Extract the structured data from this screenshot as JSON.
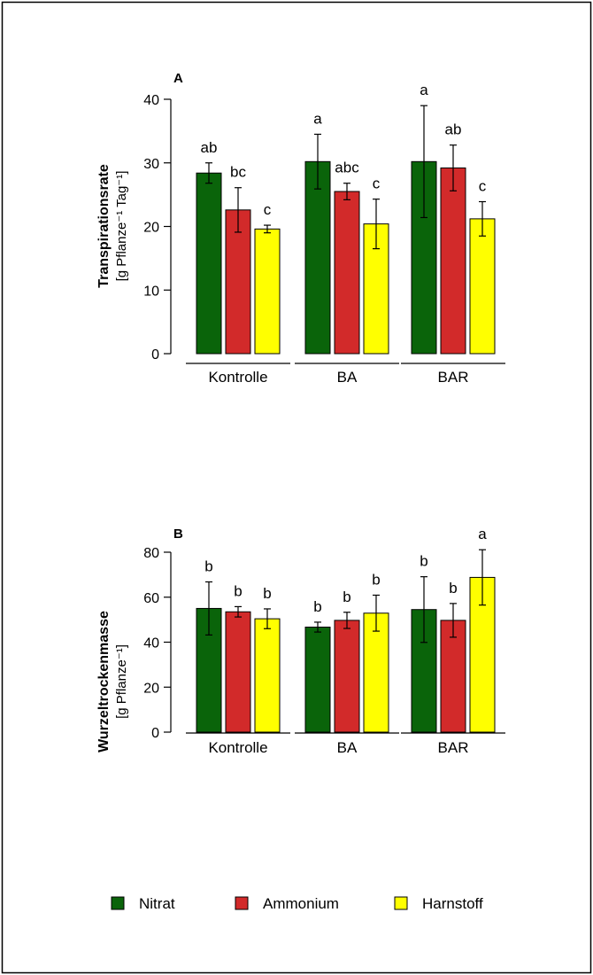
{
  "chart_data": [
    {
      "type": "bar",
      "panel": "A",
      "ylabel": "Transpirationsrate",
      "ylabel_unit": "[g Pflanze⁻¹ Tag⁻¹]",
      "ylim": [
        0,
        40
      ],
      "yticks": [
        0,
        10,
        20,
        30,
        40
      ],
      "categories": [
        "Kontrolle",
        "BA",
        "BAR"
      ],
      "series": [
        {
          "name": "Nitrat",
          "color": "#0a640a",
          "values": [
            28.4,
            30.2,
            30.2
          ],
          "errors": [
            1.6,
            4.3,
            8.8
          ],
          "letters": [
            "ab",
            "a",
            "a"
          ]
        },
        {
          "name": "Ammonium",
          "color": "#d22a2a",
          "values": [
            22.6,
            25.5,
            29.2
          ],
          "errors": [
            3.5,
            1.3,
            3.6
          ],
          "letters": [
            "bc",
            "abc",
            "ab"
          ]
        },
        {
          "name": "Harnstoff",
          "color": "#ffff00",
          "values": [
            19.6,
            20.4,
            21.2
          ],
          "errors": [
            0.6,
            3.9,
            2.7
          ],
          "letters": [
            "c",
            "c",
            "c"
          ]
        }
      ]
    },
    {
      "type": "bar",
      "panel": "B",
      "ylabel": "Wurzeltrockenmasse",
      "ylabel_unit": "[g Pflanze⁻¹]",
      "ylim": [
        0,
        80
      ],
      "yticks": [
        0,
        20,
        40,
        60,
        80
      ],
      "categories": [
        "Kontrolle",
        "BA",
        "BAR"
      ],
      "series": [
        {
          "name": "Nitrat",
          "color": "#0a640a",
          "values": [
            55.0,
            46.7,
            54.5
          ],
          "errors": [
            11.8,
            2.2,
            14.6
          ],
          "letters": [
            "b",
            "b",
            "b"
          ]
        },
        {
          "name": "Ammonium",
          "color": "#d22a2a",
          "values": [
            53.5,
            49.7,
            49.7
          ],
          "errors": [
            2.3,
            3.6,
            7.5
          ],
          "letters": [
            "b",
            "b",
            "b"
          ]
        },
        {
          "name": "Harnstoff",
          "color": "#ffff00",
          "values": [
            50.4,
            52.9,
            68.8
          ],
          "errors": [
            4.4,
            8.0,
            12.3
          ],
          "letters": [
            "b",
            "b",
            "a"
          ]
        }
      ]
    }
  ],
  "legend": [
    {
      "label": "Nitrat",
      "color": "#0a640a"
    },
    {
      "label": "Ammonium",
      "color": "#d22a2a"
    },
    {
      "label": "Harnstoff",
      "color": "#ffff00"
    }
  ]
}
